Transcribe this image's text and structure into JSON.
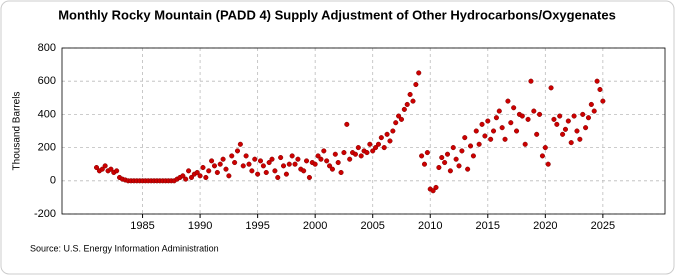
{
  "chart_data": {
    "type": "scatter",
    "title": "Monthly Rocky Mountain (PADD 4) Supply Adjustment of Other Hydrocarbons/Oxygenates",
    "y_label": "Thousand Barrels",
    "source": "Source: U.S. Energy Information Administration",
    "color": "#cc0000",
    "grid": true,
    "xlim": [
      1978,
      2030.4
    ],
    "ylim": [
      -200,
      800
    ],
    "xticks": [
      1985,
      1990,
      1995,
      2000,
      2005,
      2010,
      2015,
      2020,
      2025
    ],
    "yticks": [
      -200,
      0,
      200,
      400,
      600,
      800
    ],
    "x": [
      1981,
      1981.25,
      1981.5,
      1981.75,
      1982,
      1982.25,
      1982.5,
      1982.75,
      1983,
      1983.25,
      1983.5,
      1983.75,
      1984,
      1984.25,
      1984.5,
      1984.75,
      1985,
      1985.25,
      1985.5,
      1985.75,
      1986,
      1986.25,
      1986.5,
      1986.75,
      1987,
      1987.25,
      1987.5,
      1987.75,
      1988,
      1988.25,
      1988.5,
      1988.75,
      1989,
      1989.25,
      1989.5,
      1989.75,
      1990,
      1990.25,
      1990.5,
      1990.75,
      1991,
      1991.25,
      1991.5,
      1991.75,
      1992,
      1992.25,
      1992.5,
      1992.75,
      1993,
      1993.25,
      1993.5,
      1993.75,
      1994,
      1994.25,
      1994.5,
      1994.75,
      1995,
      1995.25,
      1995.5,
      1995.75,
      1996,
      1996.25,
      1996.5,
      1996.75,
      1997,
      1997.25,
      1997.5,
      1997.75,
      1998,
      1998.25,
      1998.5,
      1998.75,
      1999,
      1999.25,
      1999.5,
      1999.75,
      2000,
      2000.25,
      2000.5,
      2000.75,
      2001,
      2001.25,
      2001.5,
      2001.75,
      2002,
      2002.25,
      2002.5,
      2002.75,
      2003,
      2003.25,
      2003.5,
      2003.75,
      2004,
      2004.25,
      2004.5,
      2004.75,
      2005,
      2005.25,
      2005.5,
      2005.75,
      2006,
      2006.25,
      2006.5,
      2006.75,
      2007,
      2007.25,
      2007.5,
      2007.75,
      2008,
      2008.25,
      2008.5,
      2008.75,
      2009,
      2009.25,
      2009.5,
      2009.75,
      2010,
      2010.25,
      2010.5,
      2010.75,
      2011,
      2011.25,
      2011.5,
      2011.75,
      2012,
      2012.25,
      2012.5,
      2012.75,
      2013,
      2013.25,
      2013.5,
      2013.75,
      2014,
      2014.25,
      2014.5,
      2014.75,
      2015,
      2015.25,
      2015.5,
      2015.75,
      2016,
      2016.25,
      2016.5,
      2016.75,
      2017,
      2017.25,
      2017.5,
      2017.75,
      2018,
      2018.25,
      2018.5,
      2018.75,
      2019,
      2019.25,
      2019.5,
      2019.75,
      2020,
      2020.25,
      2020.5,
      2020.75,
      2021,
      2021.25,
      2021.5,
      2021.75,
      2022,
      2022.25,
      2022.5,
      2022.75,
      2023,
      2023.25,
      2023.5,
      2023.75,
      2024,
      2024.25,
      2024.5,
      2024.75,
      2025
    ],
    "values": [
      80,
      60,
      70,
      90,
      60,
      70,
      50,
      60,
      20,
      10,
      5,
      0,
      0,
      0,
      0,
      0,
      0,
      0,
      0,
      0,
      0,
      0,
      0,
      0,
      0,
      0,
      0,
      0,
      10,
      20,
      30,
      10,
      60,
      20,
      40,
      50,
      30,
      80,
      20,
      60,
      120,
      90,
      50,
      100,
      130,
      70,
      30,
      150,
      110,
      180,
      220,
      90,
      150,
      100,
      60,
      130,
      40,
      120,
      90,
      50,
      110,
      130,
      60,
      20,
      140,
      90,
      40,
      100,
      150,
      100,
      130,
      70,
      60,
      120,
      20,
      110,
      100,
      150,
      130,
      180,
      120,
      90,
      70,
      160,
      110,
      50,
      170,
      340,
      130,
      170,
      160,
      200,
      150,
      180,
      170,
      220,
      180,
      200,
      220,
      260,
      200,
      280,
      240,
      300,
      350,
      390,
      370,
      430,
      460,
      520,
      480,
      580,
      650,
      150,
      100,
      170,
      -50,
      -60,
      -40,
      80,
      140,
      110,
      160,
      60,
      200,
      130,
      90,
      180,
      260,
      70,
      210,
      150,
      300,
      220,
      340,
      270,
      360,
      250,
      300,
      380,
      420,
      320,
      250,
      480,
      350,
      440,
      300,
      400,
      390,
      220,
      370,
      600,
      420,
      280,
      400,
      150,
      200,
      100,
      560,
      370,
      340,
      390,
      280,
      310,
      360,
      230,
      390,
      300,
      250,
      400,
      320,
      380,
      460,
      420,
      600,
      550,
      480
    ]
  }
}
